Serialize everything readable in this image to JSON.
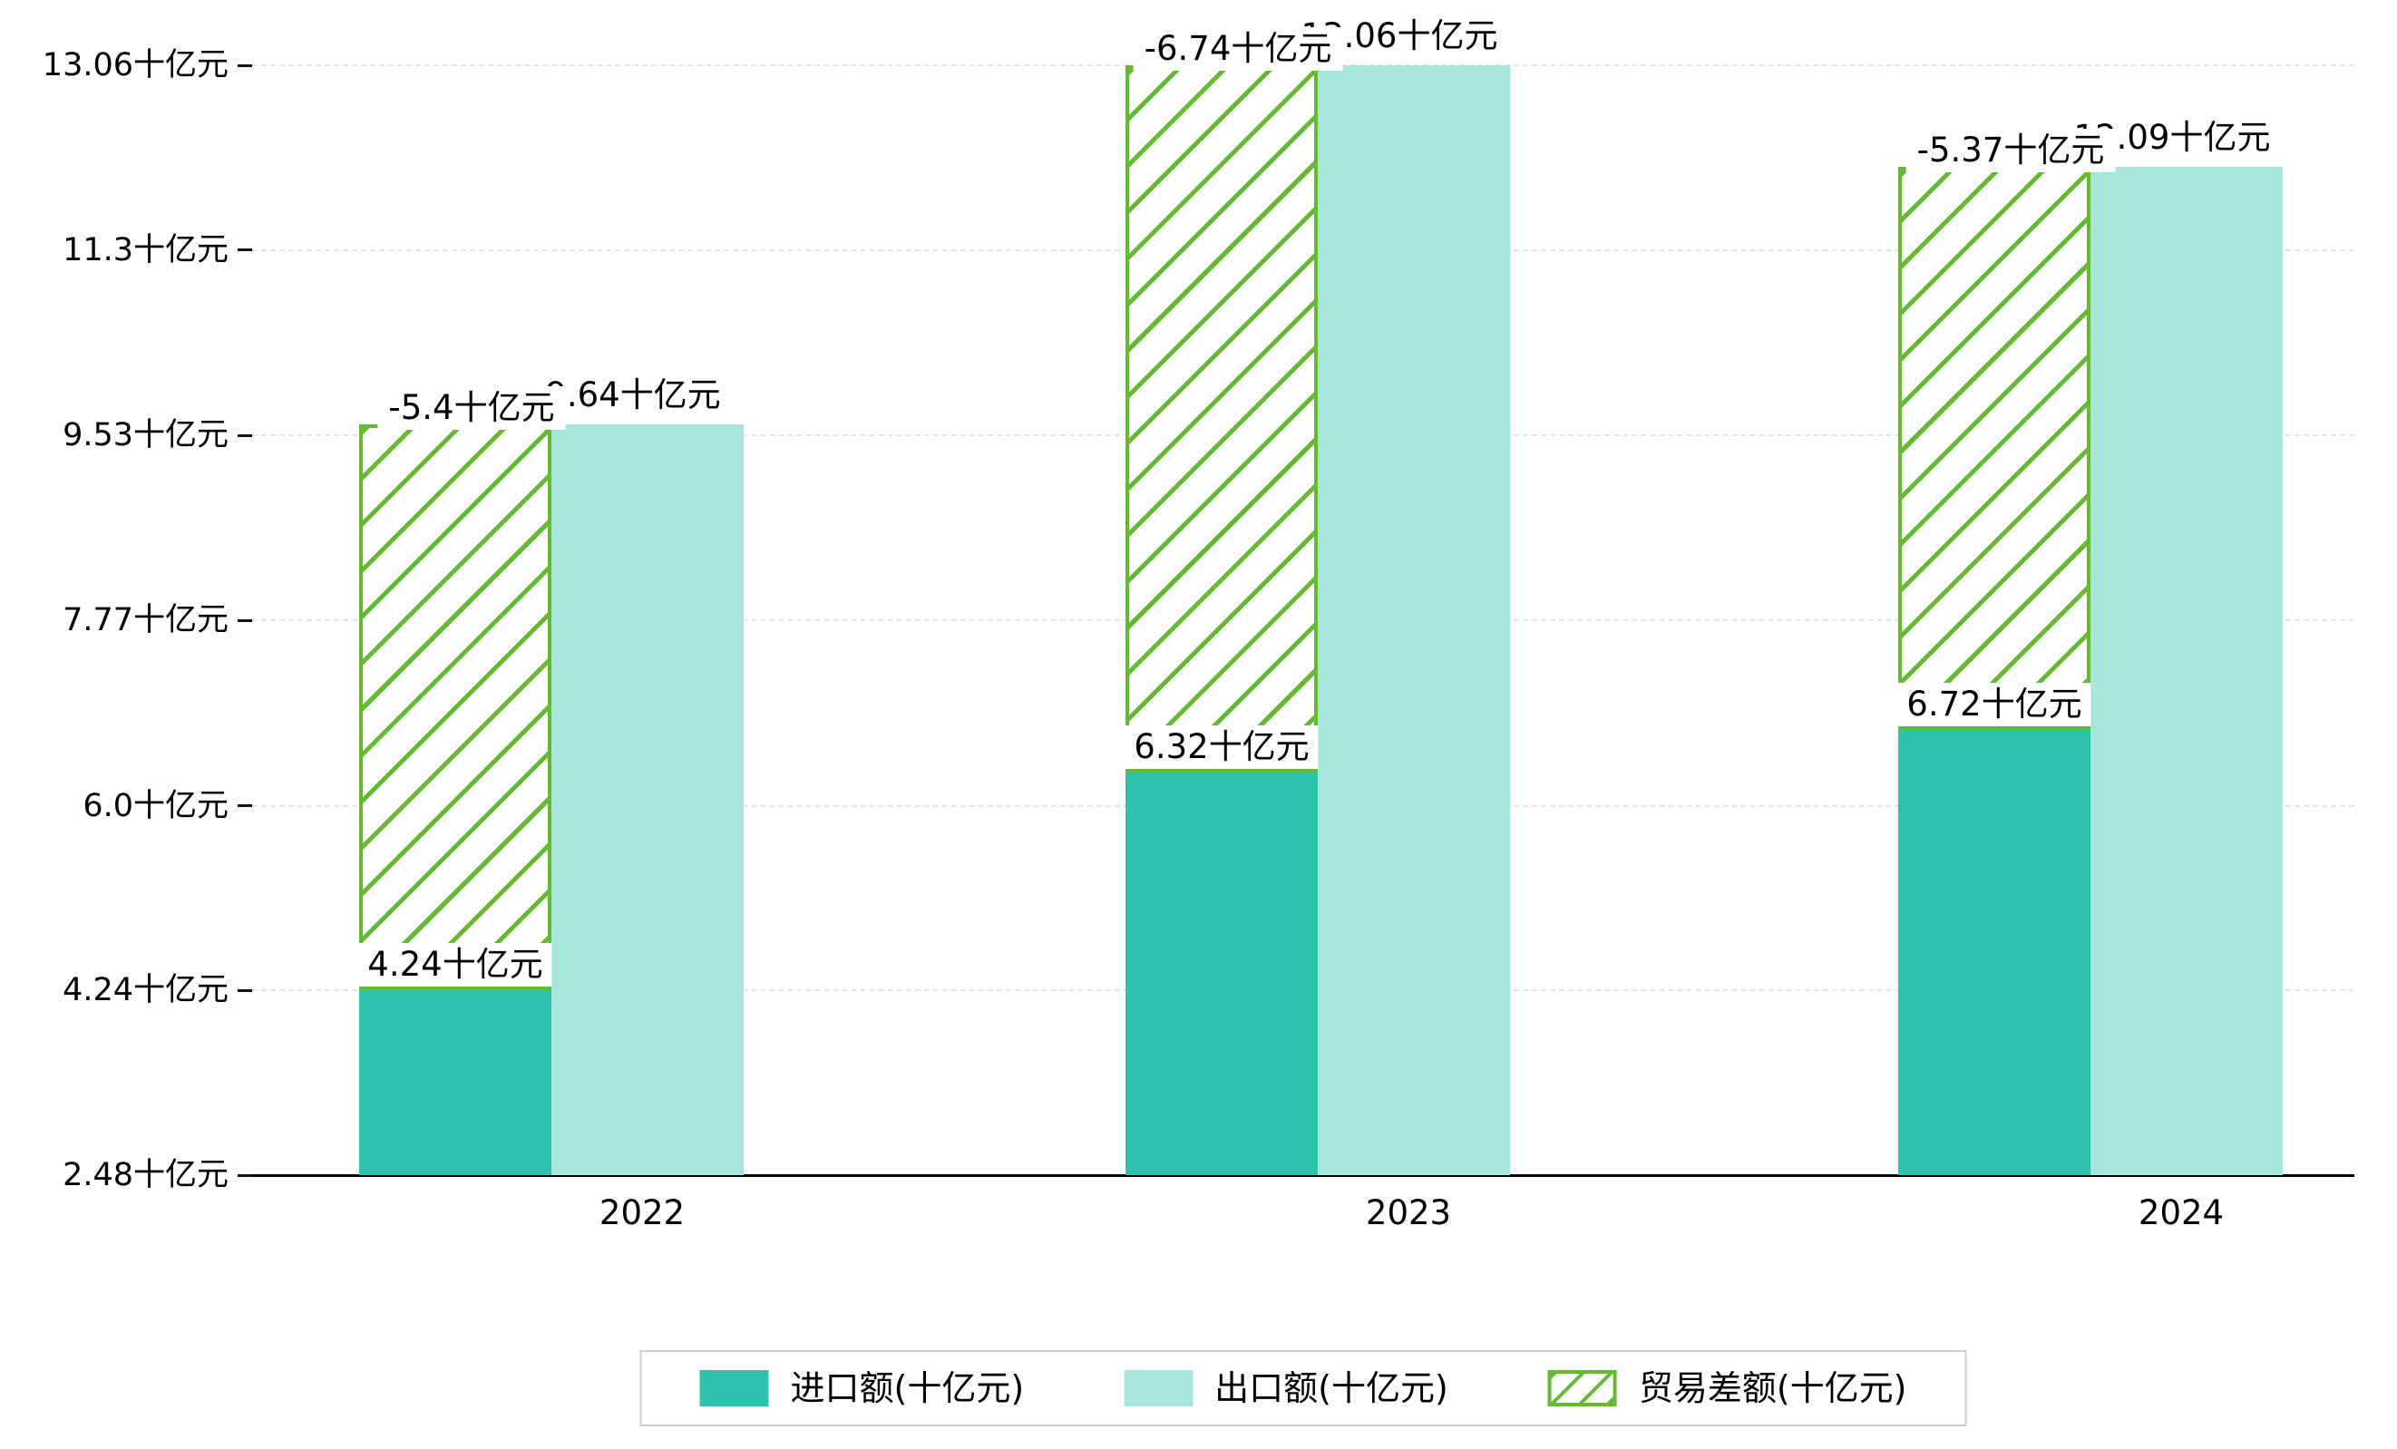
{
  "chart_data": {
    "type": "bar",
    "title": "",
    "unit": "十亿元",
    "categories": [
      "2022",
      "2023",
      "2024"
    ],
    "series": [
      {
        "name": "进口额(十亿元)",
        "values": [
          4.24,
          6.32,
          6.72
        ],
        "data_labels": [
          "4.24十亿元",
          "6.32十亿元",
          "6.72十亿元"
        ],
        "color": "#2fc2ad",
        "pattern": "solid"
      },
      {
        "name": "出口额(十亿元)",
        "values": [
          9.64,
          13.06,
          12.09
        ],
        "data_labels": [
          "9.64十亿元",
          "13.06十亿元",
          "12.09十亿元"
        ],
        "color": "#a8e6dd",
        "pattern": "solid"
      },
      {
        "name": "贸易差额(十亿元)",
        "values": [
          -5.4,
          -6.74,
          -5.37
        ],
        "data_labels": [
          "-5.4十亿元",
          "-6.74十亿元",
          "-5.37十亿元"
        ],
        "color": "#64bb32",
        "pattern": "diagonal-hatch"
      }
    ],
    "y_ticks": [
      {
        "value": 2.48,
        "label": "2.48十亿元"
      },
      {
        "value": 4.24,
        "label": "4.24十亿元"
      },
      {
        "value": 6.0,
        "label": "6.0十亿元"
      },
      {
        "value": 7.77,
        "label": "7.77十亿元"
      },
      {
        "value": 9.53,
        "label": "9.53十亿元"
      },
      {
        "value": 11.3,
        "label": "11.3十亿元"
      },
      {
        "value": 13.06,
        "label": "13.06十亿元"
      }
    ],
    "ylim": [
      2.48,
      13.06
    ],
    "xlabel": "",
    "ylabel": "",
    "grid": "horizontal-dashed",
    "legend_position": "bottom",
    "background": "#ffffff"
  }
}
